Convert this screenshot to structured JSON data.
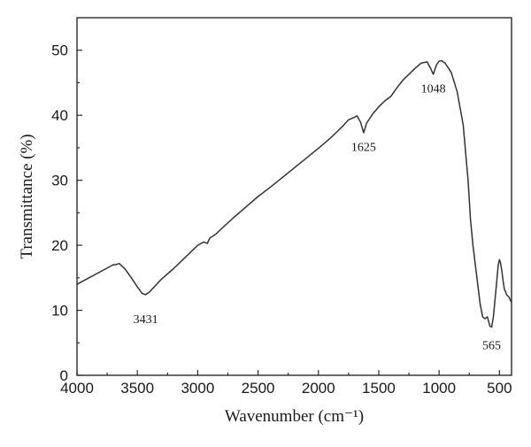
{
  "chart_data": {
    "type": "line",
    "xlabel": "Wavenumber (cm⁻¹)",
    "ylabel": "Transmittance (%)",
    "xlim": [
      4000,
      400
    ],
    "ylim": [
      0,
      55
    ],
    "x_ticks": [
      4000,
      3500,
      3000,
      2500,
      2000,
      1500,
      1000,
      500
    ],
    "y_ticks": [
      0,
      10,
      20,
      30,
      40,
      50
    ],
    "grid": false,
    "legend": "none",
    "line_color": "#333333",
    "series": [
      {
        "x": [
          4000,
          3900,
          3800,
          3700,
          3680,
          3650,
          3600,
          3550,
          3500,
          3460,
          3431,
          3400,
          3350,
          3300,
          3200,
          3100,
          3000,
          2950,
          2920,
          2900,
          2850,
          2800,
          2700,
          2600,
          2500,
          2400,
          2300,
          2200,
          2100,
          2000,
          1900,
          1800,
          1750,
          1700,
          1680,
          1650,
          1625,
          1600,
          1550,
          1500,
          1450,
          1400,
          1350,
          1300,
          1250,
          1200,
          1150,
          1100,
          1070,
          1048,
          1020,
          1000,
          980,
          950,
          900,
          850,
          800,
          760,
          740,
          720,
          700,
          680,
          660,
          640,
          620,
          600,
          580,
          565,
          550,
          530,
          510,
          500,
          490,
          480,
          470,
          460,
          440,
          420,
          400
        ],
        "y": [
          14.0,
          15.0,
          16.0,
          17.0,
          17.0,
          17.2,
          16.3,
          15.0,
          13.6,
          12.6,
          12.4,
          12.8,
          13.8,
          14.8,
          16.4,
          18.2,
          20.0,
          20.5,
          20.3,
          21.1,
          21.7,
          22.6,
          24.3,
          25.9,
          27.5,
          28.9,
          30.4,
          31.9,
          33.4,
          34.9,
          36.5,
          38.3,
          39.3,
          39.7,
          39.9,
          38.9,
          37.3,
          38.8,
          40.2,
          41.3,
          42.2,
          42.9,
          44.2,
          45.4,
          46.3,
          47.2,
          48.0,
          48.2,
          47.2,
          46.3,
          47.8,
          48.3,
          48.4,
          48.0,
          46.6,
          43.6,
          38.5,
          30.0,
          24.0,
          20.0,
          17.0,
          14.0,
          11.0,
          9.0,
          8.7,
          9.0,
          7.6,
          7.4,
          9.0,
          13.0,
          17.0,
          17.8,
          17.2,
          16.0,
          14.5,
          13.3,
          12.4,
          12.0,
          11.2
        ]
      }
    ],
    "annotations": [
      {
        "text": "3431",
        "x": 3431,
        "y": 8.0
      },
      {
        "text": "1625",
        "x": 1625,
        "y": 34.5
      },
      {
        "text": "1048",
        "x": 1048,
        "y": 43.5
      },
      {
        "text": "565",
        "x": 565,
        "y": 4.0
      }
    ]
  }
}
